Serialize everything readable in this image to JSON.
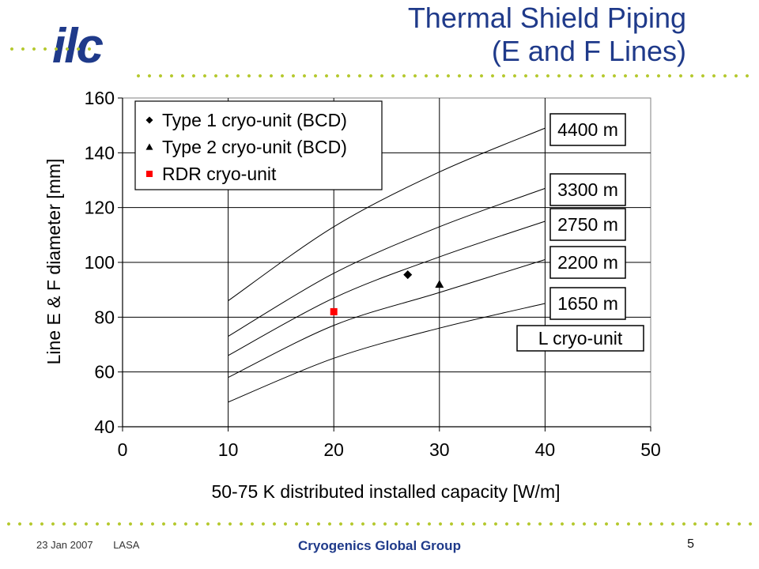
{
  "slide": {
    "title_line1": "Thermal Shield Piping",
    "title_line2": "(E and F Lines)",
    "logo_text": "ilc",
    "footer": {
      "date": "23 Jan 2007",
      "location": "LASA",
      "group": "Cryogenics Global Group",
      "page": "5"
    }
  },
  "colors": {
    "title": "#1f3a8a",
    "dots": "#b5c92f",
    "rdr_marker": "#ff0000",
    "lines": "#000000"
  },
  "chart_data": {
    "type": "line",
    "title": "",
    "xlabel": "50-75 K distributed installed capacity [W/m]",
    "ylabel": "Line E & F diameter [mm]",
    "xlim": [
      0,
      50
    ],
    "ylim": [
      40,
      160
    ],
    "xticks": [
      0,
      10,
      20,
      30,
      40,
      50
    ],
    "yticks": [
      40,
      60,
      80,
      100,
      120,
      140,
      160
    ],
    "grid": true,
    "x": [
      10,
      20,
      30,
      40
    ],
    "series": [
      {
        "name": "4400 m",
        "values": [
          86,
          113,
          133,
          149
        ]
      },
      {
        "name": "3300 m",
        "values": [
          73,
          96,
          113,
          127
        ]
      },
      {
        "name": "2750 m",
        "values": [
          66,
          87,
          102,
          115
        ]
      },
      {
        "name": "2200 m",
        "values": [
          58,
          77,
          89,
          101
        ]
      },
      {
        "name": "1650 m",
        "values": [
          49,
          65,
          76,
          85
        ]
      }
    ],
    "points": [
      {
        "name": "Type 1 cryo-unit (BCD)",
        "marker": "diamond",
        "x": 27,
        "y": 95.5
      },
      {
        "name": "Type 2 cryo-unit (BCD)",
        "marker": "triangle",
        "x": 30,
        "y": 92
      },
      {
        "name": "RDR cryo-unit",
        "marker": "square",
        "x": 20,
        "y": 82
      }
    ],
    "legend_position": "top-left",
    "annotations": [
      {
        "text": "4400 m"
      },
      {
        "text": "3300 m"
      },
      {
        "text": "2750 m"
      },
      {
        "text": "2200 m"
      },
      {
        "text": "1650 m"
      },
      {
        "text": "L cryo-unit"
      }
    ]
  }
}
